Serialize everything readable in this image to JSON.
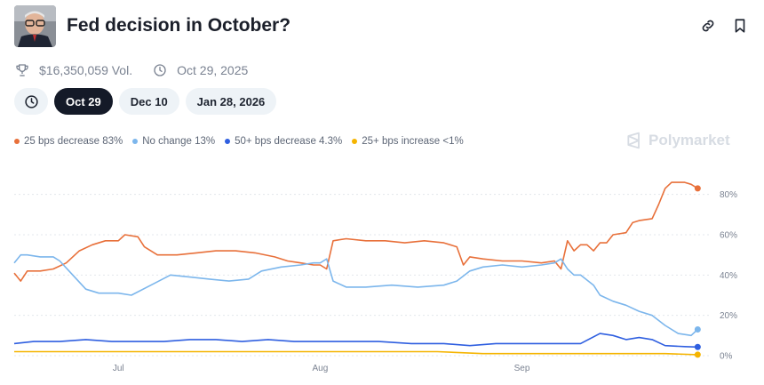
{
  "market": {
    "title": "Fed decision in October?",
    "volume": "$16,350,059 Vol.",
    "end_date": "Oct 29, 2025"
  },
  "header_icons": [
    "link-icon",
    "bookmark-icon"
  ],
  "date_tabs": [
    {
      "label": "Oct 29",
      "active": true
    },
    {
      "label": "Dec 10",
      "active": false
    },
    {
      "label": "Jan 28, 2026",
      "active": false
    }
  ],
  "legend": [
    {
      "label": "25 bps decrease 83%",
      "color": "#e8703a"
    },
    {
      "label": "No change 13%",
      "color": "#7cb6ec"
    },
    {
      "label": "50+ bps decrease 4.3%",
      "color": "#2f5fe0"
    },
    {
      "label": "25+ bps increase <1%",
      "color": "#f5b400"
    }
  ],
  "brand": "Polymarket",
  "chart_data": {
    "type": "line",
    "x_axis": {
      "range": [
        "2025-06-15",
        "2025-09-30"
      ],
      "ticks": [
        {
          "date": "2025-07-01",
          "label": "Jul"
        },
        {
          "date": "2025-08-01",
          "label": "Aug"
        },
        {
          "date": "2025-09-01",
          "label": "Sep"
        }
      ]
    },
    "y_axis": {
      "range": [
        0,
        90
      ],
      "ticks": [
        {
          "value": 0,
          "label": "0%"
        },
        {
          "value": 20,
          "label": "20%"
        },
        {
          "value": 40,
          "label": "40%"
        },
        {
          "value": 60,
          "label": "60%"
        },
        {
          "value": 80,
          "label": "80%"
        }
      ],
      "position": "right",
      "unit": "%"
    },
    "grid": "horizontal-dashed",
    "series": [
      {
        "name": "25 bps decrease",
        "color": "#e8703a",
        "points": [
          [
            "2025-06-15",
            41
          ],
          [
            "2025-06-16",
            37
          ],
          [
            "2025-06-17",
            42
          ],
          [
            "2025-06-19",
            42
          ],
          [
            "2025-06-21",
            43
          ],
          [
            "2025-06-23",
            46
          ],
          [
            "2025-06-25",
            52
          ],
          [
            "2025-06-27",
            55
          ],
          [
            "2025-06-29",
            57
          ],
          [
            "2025-07-01",
            57
          ],
          [
            "2025-07-02",
            60
          ],
          [
            "2025-07-04",
            59
          ],
          [
            "2025-07-05",
            54
          ],
          [
            "2025-07-07",
            50
          ],
          [
            "2025-07-10",
            50
          ],
          [
            "2025-07-13",
            51
          ],
          [
            "2025-07-16",
            52
          ],
          [
            "2025-07-19",
            52
          ],
          [
            "2025-07-22",
            51
          ],
          [
            "2025-07-25",
            49
          ],
          [
            "2025-07-27",
            47
          ],
          [
            "2025-07-29",
            46
          ],
          [
            "2025-07-31",
            45
          ],
          [
            "2025-08-01",
            45
          ],
          [
            "2025-08-02",
            43
          ],
          [
            "2025-08-03",
            57
          ],
          [
            "2025-08-05",
            58
          ],
          [
            "2025-08-08",
            57
          ],
          [
            "2025-08-11",
            57
          ],
          [
            "2025-08-14",
            56
          ],
          [
            "2025-08-17",
            57
          ],
          [
            "2025-08-20",
            56
          ],
          [
            "2025-08-22",
            54
          ],
          [
            "2025-08-23",
            45
          ],
          [
            "2025-08-24",
            49
          ],
          [
            "2025-08-26",
            48
          ],
          [
            "2025-08-29",
            47
          ],
          [
            "2025-09-01",
            47
          ],
          [
            "2025-09-04",
            46
          ],
          [
            "2025-09-06",
            47
          ],
          [
            "2025-09-07",
            43
          ],
          [
            "2025-09-08",
            57
          ],
          [
            "2025-09-09",
            52
          ],
          [
            "2025-09-10",
            55
          ],
          [
            "2025-09-11",
            55
          ],
          [
            "2025-09-12",
            52
          ],
          [
            "2025-09-13",
            56
          ],
          [
            "2025-09-14",
            56
          ],
          [
            "2025-09-15",
            60
          ],
          [
            "2025-09-17",
            61
          ],
          [
            "2025-09-18",
            66
          ],
          [
            "2025-09-19",
            67
          ],
          [
            "2025-09-21",
            68
          ],
          [
            "2025-09-22",
            75
          ],
          [
            "2025-09-23",
            83
          ],
          [
            "2025-09-24",
            86
          ],
          [
            "2025-09-26",
            86
          ],
          [
            "2025-09-27",
            85
          ],
          [
            "2025-09-28",
            83
          ]
        ]
      },
      {
        "name": "No change",
        "color": "#7cb6ec",
        "points": [
          [
            "2025-06-15",
            46
          ],
          [
            "2025-06-16",
            50
          ],
          [
            "2025-06-17",
            50
          ],
          [
            "2025-06-19",
            49
          ],
          [
            "2025-06-21",
            49
          ],
          [
            "2025-06-22",
            47
          ],
          [
            "2025-06-24",
            40
          ],
          [
            "2025-06-26",
            33
          ],
          [
            "2025-06-28",
            31
          ],
          [
            "2025-07-01",
            31
          ],
          [
            "2025-07-03",
            30
          ],
          [
            "2025-07-06",
            35
          ],
          [
            "2025-07-09",
            40
          ],
          [
            "2025-07-12",
            39
          ],
          [
            "2025-07-15",
            38
          ],
          [
            "2025-07-18",
            37
          ],
          [
            "2025-07-21",
            38
          ],
          [
            "2025-07-23",
            42
          ],
          [
            "2025-07-26",
            44
          ],
          [
            "2025-07-29",
            45
          ],
          [
            "2025-07-31",
            46
          ],
          [
            "2025-08-01",
            46
          ],
          [
            "2025-08-02",
            48
          ],
          [
            "2025-08-03",
            37
          ],
          [
            "2025-08-05",
            34
          ],
          [
            "2025-08-08",
            34
          ],
          [
            "2025-08-12",
            35
          ],
          [
            "2025-08-16",
            34
          ],
          [
            "2025-08-20",
            35
          ],
          [
            "2025-08-22",
            37
          ],
          [
            "2025-08-24",
            42
          ],
          [
            "2025-08-26",
            44
          ],
          [
            "2025-08-29",
            45
          ],
          [
            "2025-09-01",
            44
          ],
          [
            "2025-09-04",
            45
          ],
          [
            "2025-09-06",
            46
          ],
          [
            "2025-09-07",
            48
          ],
          [
            "2025-09-08",
            43
          ],
          [
            "2025-09-09",
            40
          ],
          [
            "2025-09-10",
            40
          ],
          [
            "2025-09-12",
            35
          ],
          [
            "2025-09-13",
            30
          ],
          [
            "2025-09-15",
            27
          ],
          [
            "2025-09-17",
            25
          ],
          [
            "2025-09-19",
            22
          ],
          [
            "2025-09-21",
            20
          ],
          [
            "2025-09-23",
            15
          ],
          [
            "2025-09-25",
            11
          ],
          [
            "2025-09-27",
            10
          ],
          [
            "2025-09-28",
            13
          ]
        ]
      },
      {
        "name": "50+ bps decrease",
        "color": "#2f5fe0",
        "points": [
          [
            "2025-06-15",
            6
          ],
          [
            "2025-06-18",
            7
          ],
          [
            "2025-06-22",
            7
          ],
          [
            "2025-06-26",
            8
          ],
          [
            "2025-06-30",
            7
          ],
          [
            "2025-07-04",
            7
          ],
          [
            "2025-07-08",
            7
          ],
          [
            "2025-07-12",
            8
          ],
          [
            "2025-07-16",
            8
          ],
          [
            "2025-07-20",
            7
          ],
          [
            "2025-07-24",
            8
          ],
          [
            "2025-07-28",
            7
          ],
          [
            "2025-08-01",
            7
          ],
          [
            "2025-08-05",
            7
          ],
          [
            "2025-08-10",
            7
          ],
          [
            "2025-08-15",
            6
          ],
          [
            "2025-08-20",
            6
          ],
          [
            "2025-08-24",
            5
          ],
          [
            "2025-08-28",
            6
          ],
          [
            "2025-09-02",
            6
          ],
          [
            "2025-09-06",
            6
          ],
          [
            "2025-09-10",
            6
          ],
          [
            "2025-09-13",
            11
          ],
          [
            "2025-09-15",
            10
          ],
          [
            "2025-09-17",
            8
          ],
          [
            "2025-09-19",
            9
          ],
          [
            "2025-09-21",
            8
          ],
          [
            "2025-09-23",
            5
          ],
          [
            "2025-09-26",
            4.5
          ],
          [
            "2025-09-28",
            4.3
          ]
        ]
      },
      {
        "name": "25+ bps increase",
        "color": "#f5b400",
        "points": [
          [
            "2025-06-15",
            2
          ],
          [
            "2025-06-20",
            2
          ],
          [
            "2025-06-25",
            2
          ],
          [
            "2025-07-01",
            2
          ],
          [
            "2025-07-08",
            2
          ],
          [
            "2025-07-15",
            2
          ],
          [
            "2025-07-22",
            2
          ],
          [
            "2025-07-29",
            2
          ],
          [
            "2025-08-05",
            2
          ],
          [
            "2025-08-12",
            2
          ],
          [
            "2025-08-19",
            2
          ],
          [
            "2025-08-26",
            1
          ],
          [
            "2025-09-02",
            1
          ],
          [
            "2025-09-09",
            1
          ],
          [
            "2025-09-16",
            1
          ],
          [
            "2025-09-23",
            1
          ],
          [
            "2025-09-28",
            0.5
          ]
        ]
      }
    ]
  }
}
